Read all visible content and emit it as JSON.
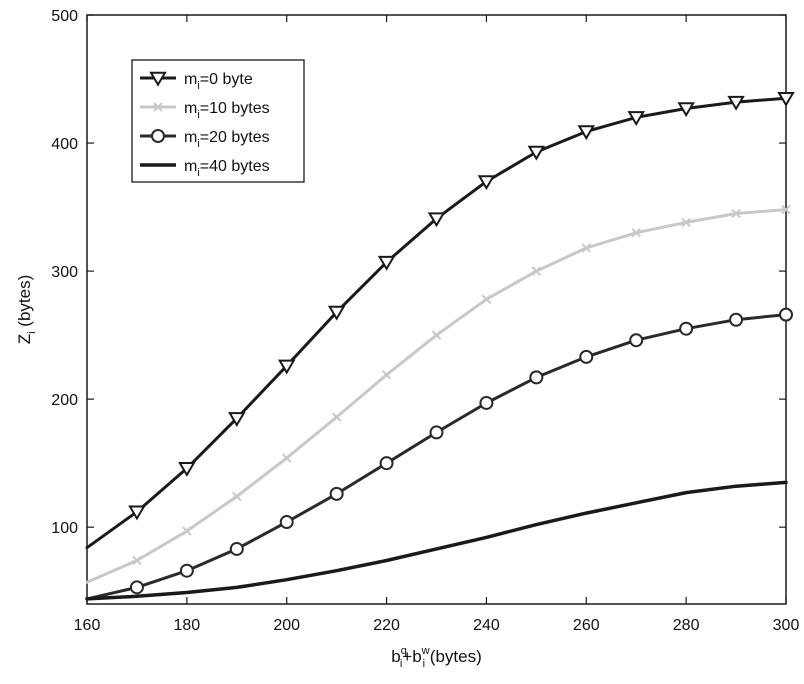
{
  "chart_data": {
    "type": "line",
    "xlabel": {
      "base": "b",
      "sup1": "q",
      "sub1": "i",
      "plus": "+",
      "sup2": "w",
      "sub2": "i",
      "unit": "(bytes)"
    },
    "ylabel": {
      "base": "Z",
      "sub": "i",
      "unit": "(bytes)"
    },
    "xlim": [
      160,
      300
    ],
    "ylim": [
      40,
      500
    ],
    "xticks": [
      160,
      180,
      200,
      220,
      240,
      260,
      280,
      300
    ],
    "yticks": [
      100,
      200,
      300,
      400,
      500
    ],
    "x": [
      160,
      170,
      180,
      190,
      200,
      210,
      220,
      230,
      240,
      250,
      260,
      270,
      280,
      290,
      300
    ],
    "legend_position": "top-left",
    "series": [
      {
        "name": "m_i=0 byte",
        "legend": {
          "pre": "m",
          "sub": "i",
          "post": "=0 byte"
        },
        "marker": "triangle-down",
        "color": "#1a1a1a",
        "width": 3,
        "marker_x": [
          170,
          180,
          190,
          200,
          210,
          220,
          230,
          240,
          250,
          260,
          270,
          280,
          290,
          300
        ],
        "values": [
          84,
          112,
          146,
          185,
          226,
          268,
          307,
          341,
          370,
          393,
          409,
          420,
          427,
          432,
          435
        ]
      },
      {
        "name": "m_i=10 bytes",
        "legend": {
          "pre": "m",
          "sub": "i",
          "post": "=10 bytes"
        },
        "marker": "x",
        "color": "#c8c8c8",
        "width": 3,
        "marker_x": [
          170,
          180,
          190,
          200,
          210,
          220,
          230,
          240,
          250,
          260,
          270,
          280,
          290,
          300
        ],
        "values": [
          57,
          74,
          97,
          124,
          154,
          186,
          219,
          250,
          278,
          300,
          318,
          330,
          338,
          345,
          348
        ]
      },
      {
        "name": "m_i=20 bytes",
        "legend": {
          "pre": "m",
          "sub": "i",
          "post": "=20 bytes"
        },
        "marker": "circle",
        "color": "#2a2a2a",
        "width": 3,
        "marker_x": [
          170,
          180,
          190,
          200,
          210,
          220,
          230,
          240,
          250,
          260,
          270,
          280,
          290,
          300
        ],
        "values": [
          44,
          53,
          66,
          83,
          104,
          126,
          150,
          174,
          197,
          217,
          233,
          246,
          255,
          262,
          266
        ]
      },
      {
        "name": "m_i=40 bytes",
        "legend": {
          "pre": "m",
          "sub": "i",
          "post": "=40 bytes"
        },
        "marker": "none",
        "color": "#1a1a1a",
        "width": 3.5,
        "marker_x": [],
        "values": [
          44,
          46,
          49,
          53,
          59,
          66,
          74,
          83,
          92,
          102,
          111,
          119,
          127,
          132,
          135
        ]
      }
    ]
  }
}
